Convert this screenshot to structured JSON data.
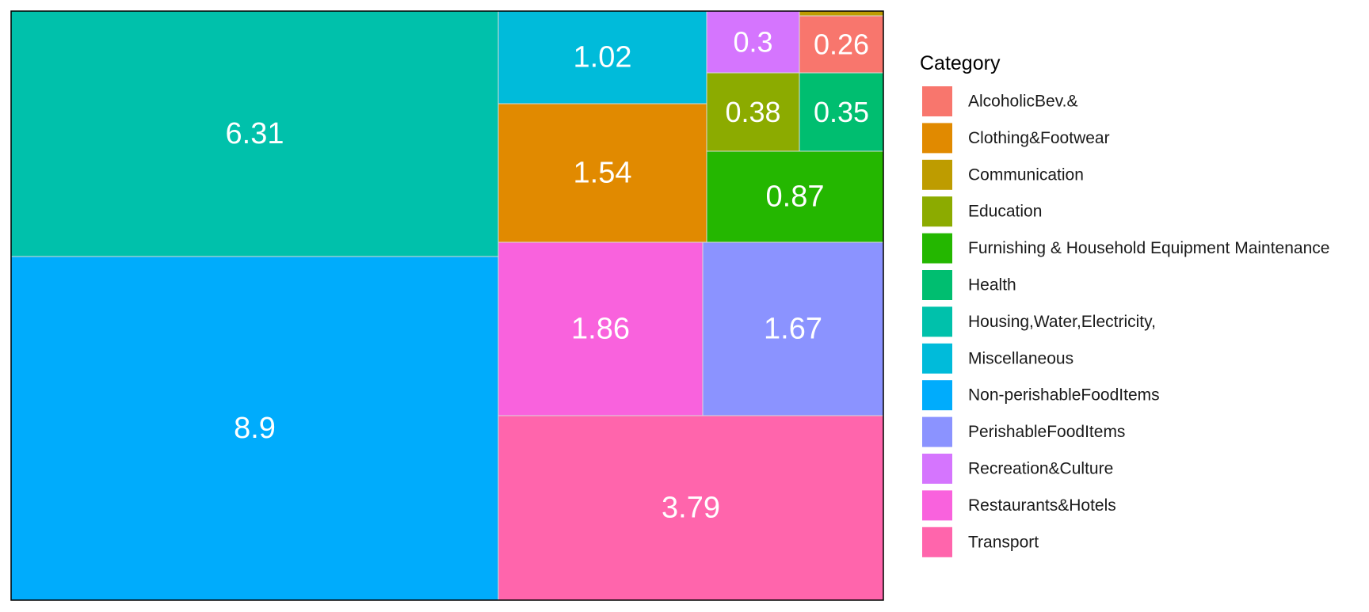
{
  "chart_data": {
    "type": "treemap",
    "legend": {
      "title": "Category",
      "position": "right"
    },
    "categories": [
      "AlcoholicBev.&",
      "Clothing&Footwear",
      "Communication",
      "Education",
      "Furnishing & Household Equipment Maintenance",
      "Health",
      "Housing,Water,Electricity,",
      "Miscellaneous",
      "Non-perishableFoodItems",
      "PerishableFoodItems",
      "Recreation&Culture",
      "Restaurants&Hotels",
      "Transport"
    ],
    "colors": [
      "#F8766D",
      "#E18A00",
      "#BE9C00",
      "#8CAB00",
      "#24B700",
      "#00BE70",
      "#00C1AB",
      "#00BBDA",
      "#00ACFC",
      "#8B93FF",
      "#D575FE",
      "#F962DD",
      "#FF65AC"
    ],
    "values": [
      0.26,
      1.54,
      0.05,
      0.38,
      0.87,
      0.35,
      6.31,
      1.02,
      8.9,
      1.67,
      0.3,
      1.86,
      3.79
    ],
    "labels": [
      "0.26",
      "1.54",
      "",
      "0.38",
      "0.87",
      "0.35",
      "6.31",
      "1.02",
      "8.9",
      "1.67",
      "0.3",
      "1.86",
      "3.79"
    ]
  }
}
